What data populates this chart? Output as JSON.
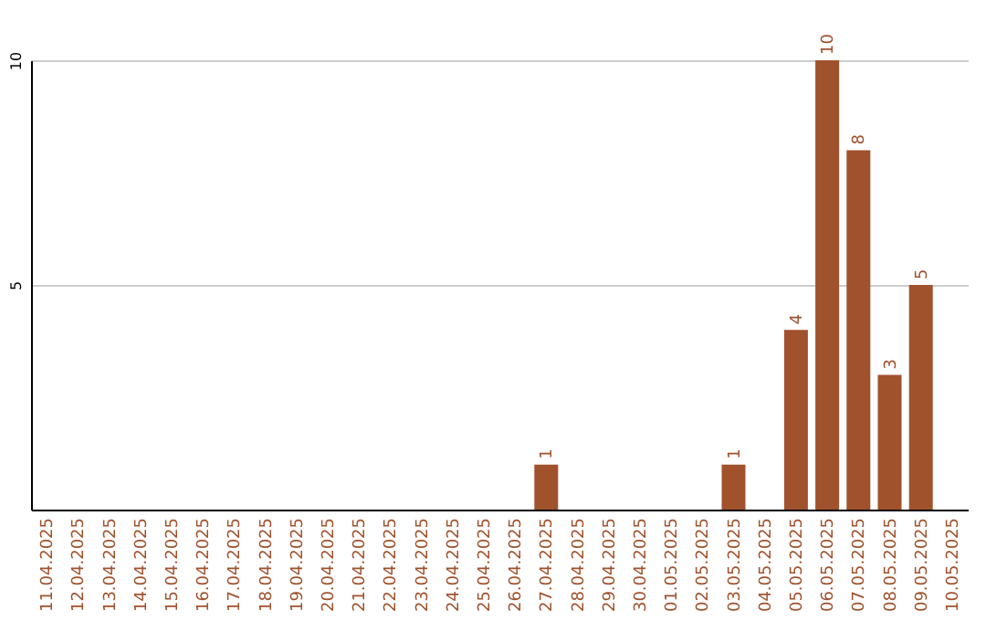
{
  "chart_data": {
    "type": "bar",
    "categories": [
      "11.04.2025",
      "12.04.2025",
      "13.04.2025",
      "14.04.2025",
      "15.04.2025",
      "16.04.2025",
      "17.04.2025",
      "18.04.2025",
      "19.04.2025",
      "20.04.2025",
      "21.04.2025",
      "22.04.2025",
      "23.04.2025",
      "24.04.2025",
      "25.04.2025",
      "26.04.2025",
      "27.04.2025",
      "28.04.2025",
      "29.04.2025",
      "30.04.2025",
      "01.05.2025",
      "02.05.2025",
      "03.05.2025",
      "04.05.2025",
      "05.05.2025",
      "06.05.2025",
      "07.05.2025",
      "08.05.2025",
      "09.05.2025",
      "10.05.2025"
    ],
    "values": [
      0,
      0,
      0,
      0,
      0,
      0,
      0,
      0,
      0,
      0,
      0,
      0,
      0,
      0,
      0,
      0,
      1,
      0,
      0,
      0,
      0,
      0,
      1,
      0,
      4,
      10,
      8,
      3,
      5,
      0
    ],
    "value_labels": [
      null,
      null,
      null,
      null,
      null,
      null,
      null,
      null,
      null,
      null,
      null,
      null,
      null,
      null,
      null,
      null,
      "1",
      null,
      null,
      null,
      null,
      null,
      "1",
      null,
      "4",
      "10",
      "8",
      "3",
      "5",
      null
    ],
    "color": "#a0522d",
    "ylim": [
      0,
      10
    ],
    "yticks": [
      5,
      10
    ],
    "grid": "y"
  }
}
